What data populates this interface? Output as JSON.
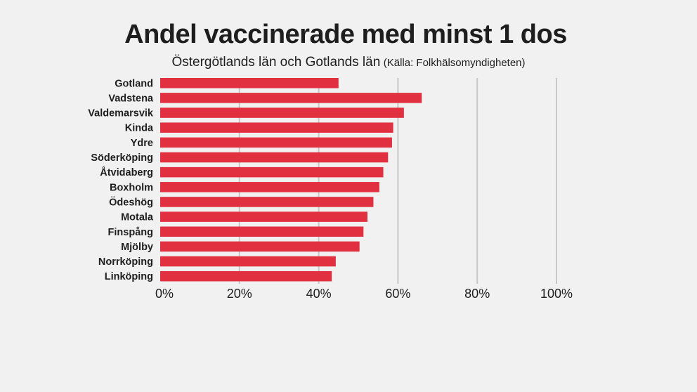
{
  "title": "Andel vaccinerade med minst 1 dos",
  "subtitle": "Östergötlands län och Gotlands län",
  "source_note": "(Källa: Folkhälsomyndigheten)",
  "chart_data": {
    "type": "bar",
    "orientation": "horizontal",
    "title": "Andel vaccinerade med minst 1 dos",
    "subtitle": "Östergötlands län och Gotlands län",
    "categories": [
      "Gotland",
      "Vadstena",
      "Valdemarsvik",
      "Kinda",
      "Ydre",
      "Söderköping",
      "Åtvidaberg",
      "Boxholm",
      "Ödeshög",
      "Motala",
      "Finspång",
      "Mjölby",
      "Norrköping",
      "Linköping"
    ],
    "values": [
      45,
      66,
      61.5,
      58.8,
      58.5,
      57.5,
      56.3,
      55.3,
      53.8,
      52.3,
      51.3,
      50.3,
      44.3,
      43.3
    ],
    "xlim": [
      0,
      100
    ],
    "ticks": [
      0,
      20,
      40,
      60,
      80,
      100
    ],
    "tick_labels": [
      "0%",
      "20%",
      "40%",
      "60%",
      "80%",
      "100%"
    ],
    "grid": true,
    "bar_color": "#e1303f",
    "grid_color": "#c8c8c8"
  }
}
